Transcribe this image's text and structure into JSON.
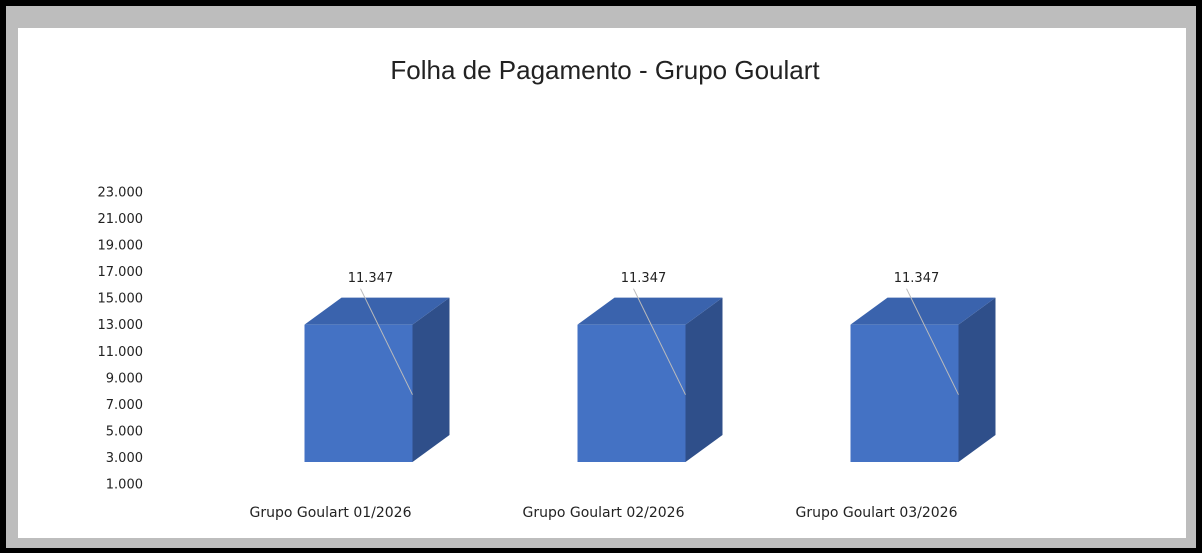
{
  "chart_data": {
    "type": "bar3d",
    "title": "Folha de Pagamento - Grupo Goulart",
    "categories": [
      "Grupo Goulart 01/2026",
      "Grupo Goulart 02/2026",
      "Grupo Goulart 03/2026"
    ],
    "values": [
      11347,
      11347,
      11347
    ],
    "value_labels": [
      "11.347",
      "11.347",
      "11.347"
    ],
    "color": "#4472c4",
    "ylim": [
      1000,
      23000
    ],
    "yticks": [
      {
        "value": 1000,
        "label": "1.000"
      },
      {
        "value": 3000,
        "label": "3.000"
      },
      {
        "value": 5000,
        "label": "5.000"
      },
      {
        "value": 7000,
        "label": "7.000"
      },
      {
        "value": 9000,
        "label": "9.000"
      },
      {
        "value": 11000,
        "label": "11.000"
      },
      {
        "value": 13000,
        "label": "13.000"
      },
      {
        "value": 15000,
        "label": "15.000"
      },
      {
        "value": 17000,
        "label": "17.000"
      },
      {
        "value": 19000,
        "label": "19.000"
      },
      {
        "value": 21000,
        "label": "21.000"
      },
      {
        "value": 23000,
        "label": "23.000"
      }
    ],
    "grid": false
  }
}
